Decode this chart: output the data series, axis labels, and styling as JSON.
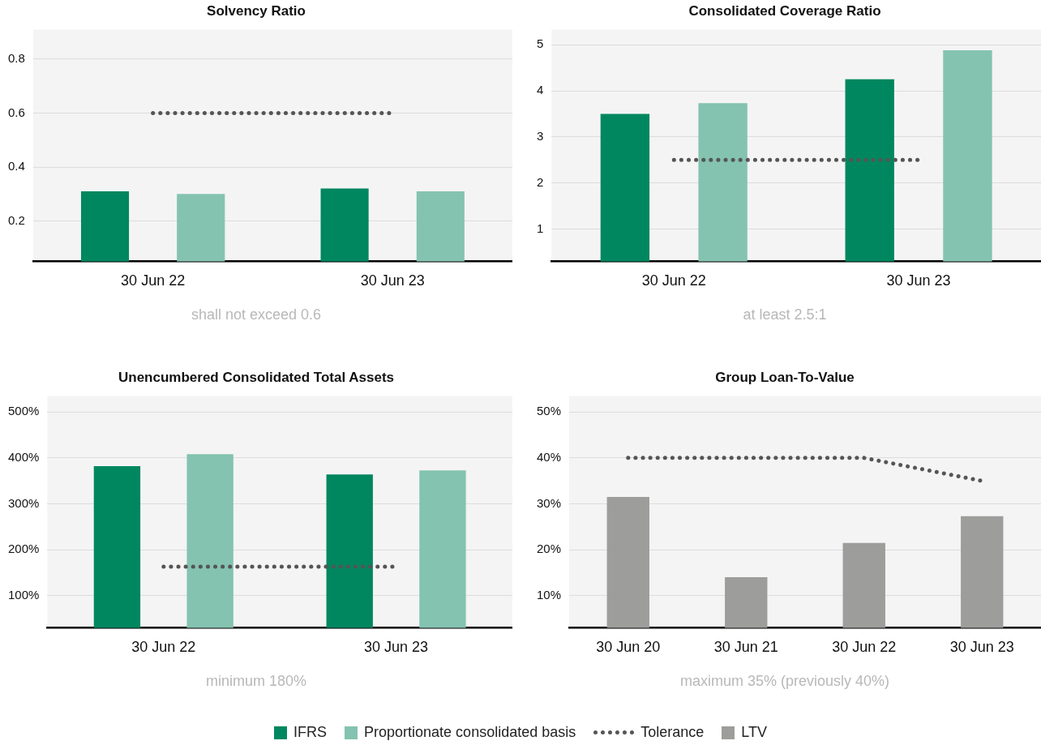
{
  "chart_data": [
    {
      "type": "bar",
      "title": "Solvency Ratio",
      "categories": [
        "30 Jun 22",
        "30 Jun 23"
      ],
      "series": [
        {
          "name": "IFRS",
          "color": "#00875f",
          "values": [
            0.31,
            0.32
          ]
        },
        {
          "name": "Proportionate consolidated basis",
          "color": "#84c3b0",
          "values": [
            0.3,
            0.31
          ]
        },
        {
          "name": "Tolerance",
          "type": "line",
          "color": "#555555",
          "line_style": "dotted",
          "values": [
            0.6,
            0.6
          ]
        }
      ],
      "ylim": [
        0.05,
        0.91
      ],
      "yticks": [
        0.2,
        0.4,
        0.6,
        0.8
      ],
      "grid": "y",
      "legend": "bottom",
      "marker": "none",
      "annotations": [
        "shall not exceed 0.6"
      ]
    },
    {
      "type": "bar",
      "title": "Consolidated Coverage Ratio",
      "categories": [
        "30 Jun 22",
        "30 Jun 23"
      ],
      "series": [
        {
          "name": "IFRS",
          "color": "#00875f",
          "values": [
            3.5,
            4.25
          ]
        },
        {
          "name": "Proportionate consolidated basis",
          "color": "#84c3b0",
          "values": [
            3.73,
            4.88
          ]
        },
        {
          "name": "Tolerance",
          "type": "line",
          "color": "#555555",
          "line_style": "dotted",
          "values": [
            2.5,
            2.5
          ]
        }
      ],
      "ylim": [
        0.3,
        5.33
      ],
      "yticks": [
        1,
        2,
        3,
        4,
        5
      ],
      "grid": "y",
      "legend": "bottom",
      "marker": "none",
      "annotations": [
        "at least 2.5:1"
      ]
    },
    {
      "type": "bar",
      "title": "Unencumbered Consolidated Total Assets",
      "categories": [
        "30 Jun 22",
        "30 Jun 23"
      ],
      "series": [
        {
          "name": "IFRS",
          "color": "#00875f",
          "values": [
            382,
            364
          ]
        },
        {
          "name": "Proportionate consolidated basis",
          "color": "#84c3b0",
          "values": [
            408,
            373
          ]
        },
        {
          "name": "Tolerance",
          "type": "line",
          "color": "#555555",
          "line_style": "dotted",
          "values": [
            163,
            163
          ]
        }
      ],
      "ylim": [
        30,
        535
      ],
      "yticks": [
        {
          "value": 100,
          "label": "100%"
        },
        {
          "value": 200,
          "label": "200%"
        },
        {
          "value": 300,
          "label": "300%"
        },
        {
          "value": 400,
          "label": "400%"
        },
        {
          "value": 500,
          "label": "500%"
        }
      ],
      "grid": "y",
      "legend": "bottom",
      "marker": "none",
      "annotations": [
        "minimum 180%"
      ]
    },
    {
      "type": "bar",
      "title": "Group Loan-To-Value",
      "categories": [
        "30 Jun 20",
        "30 Jun 21",
        "30 Jun 22",
        "30 Jun 23"
      ],
      "series": [
        {
          "name": "LTV",
          "color": "#9d9d9b",
          "values": [
            31.5,
            14.0,
            21.5,
            27.3
          ]
        },
        {
          "name": "Tolerance",
          "type": "line",
          "color": "#555555",
          "line_style": "dotted",
          "values": [
            40,
            40,
            40,
            35
          ]
        }
      ],
      "ylim": [
        3,
        53.5
      ],
      "yticks": [
        {
          "value": 10,
          "label": "10%"
        },
        {
          "value": 20,
          "label": "20%"
        },
        {
          "value": 30,
          "label": "30%"
        },
        {
          "value": 40,
          "label": "40%"
        },
        {
          "value": 50,
          "label": "50%"
        }
      ],
      "grid": "y",
      "legend": "bottom",
      "marker": "none",
      "annotations": [
        "maximum 35% (previously 40%)"
      ]
    }
  ]
}
